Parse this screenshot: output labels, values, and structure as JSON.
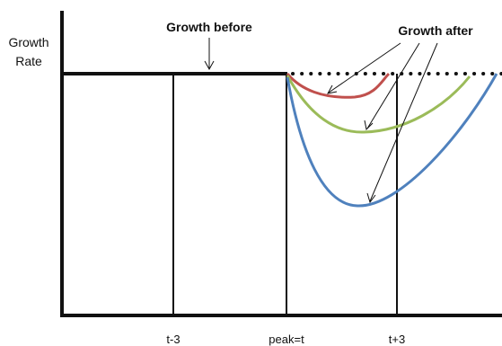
{
  "ylabel_lines": [
    "Growth",
    "Rate"
  ],
  "annotations": {
    "before": "Growth before",
    "after": "Growth after"
  },
  "x_ticks": [
    "t-3",
    "peak=t",
    "t+3"
  ],
  "colors": {
    "axis": "#111111",
    "baseline": "#111111",
    "mild": "#c0504d",
    "moderate": "#9bbb59",
    "severe": "#4f81bd"
  }
}
